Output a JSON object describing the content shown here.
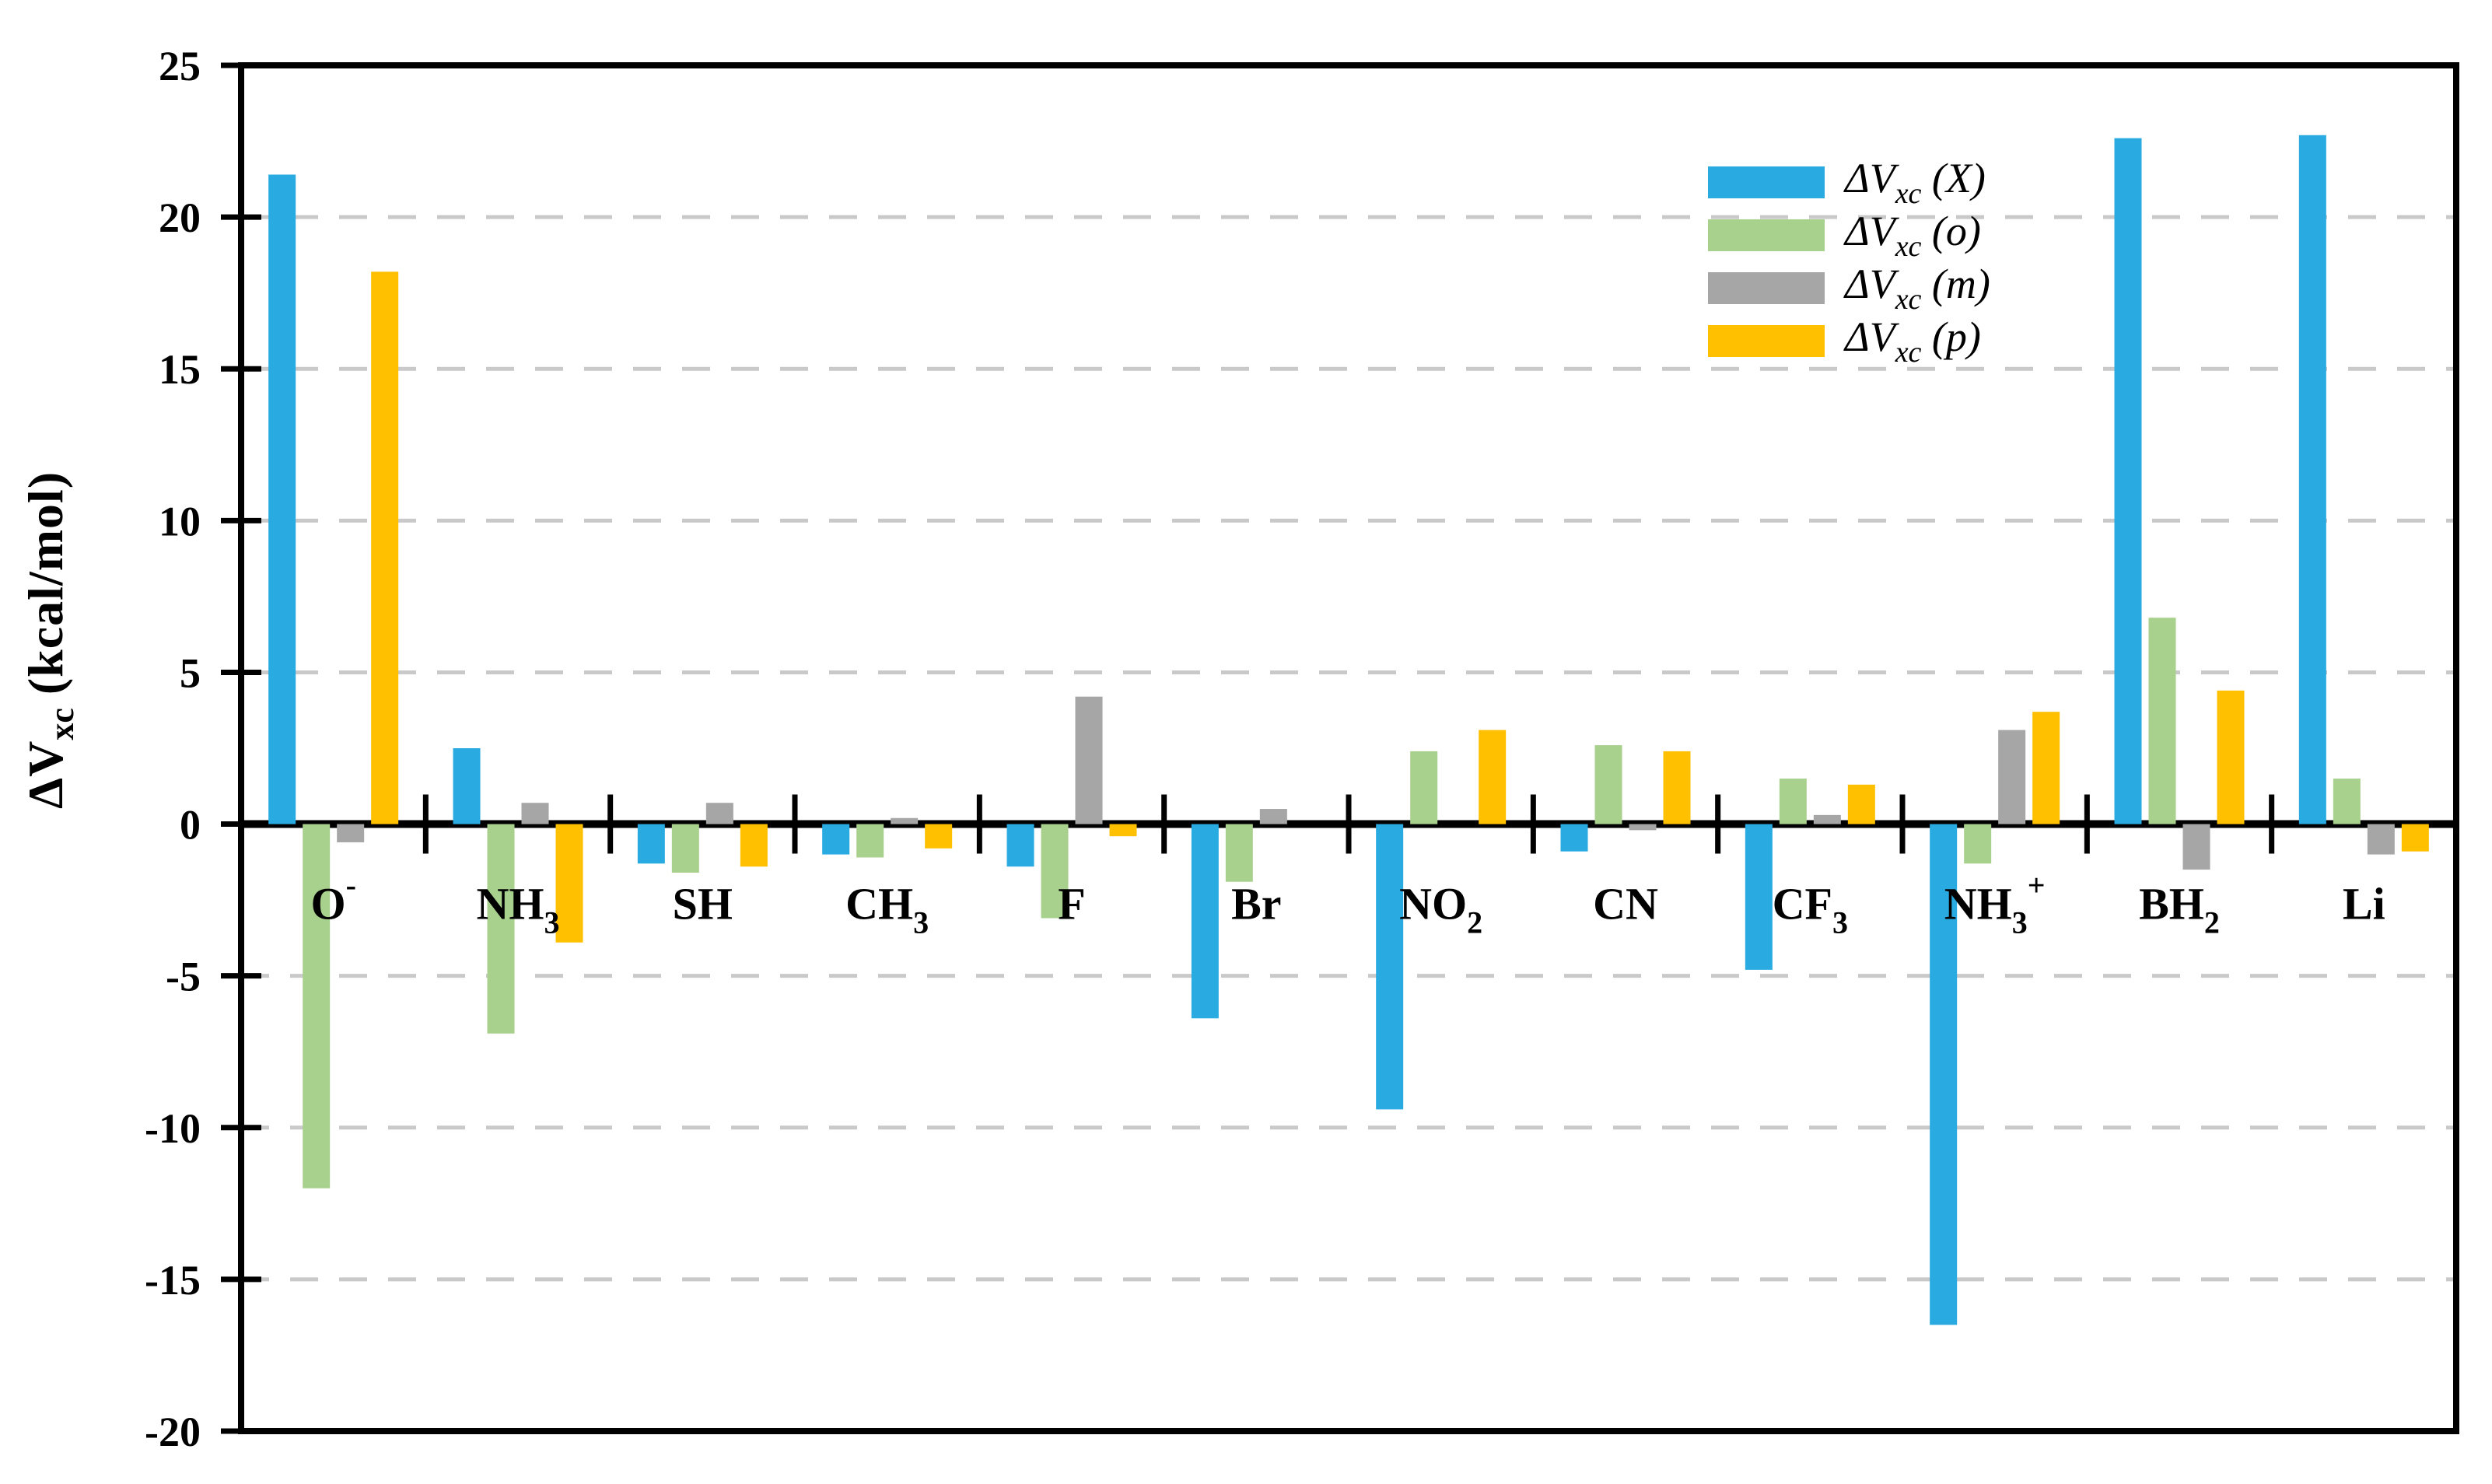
{
  "figure": {
    "background": "#FFFFFF",
    "axis_title": {
      "prefix": "ΔV",
      "sub": "xc",
      "rest": " (kcal/mol)"
    }
  },
  "legend": {
    "rows": [
      {
        "pre": "ΔV",
        "sub": "xc",
        "arg": " (X)"
      },
      {
        "pre": "ΔV",
        "sub": "xc",
        "arg": " (o)"
      },
      {
        "pre": "ΔV",
        "sub": "xc",
        "arg": " (m)"
      },
      {
        "pre": "ΔV",
        "sub": "xc",
        "arg": " (p)"
      }
    ]
  },
  "chart_data": {
    "type": "bar",
    "title": "",
    "xlabel": "",
    "ylabel": "ΔV_xc (kcal/mol)",
    "ylim": [
      -20,
      25
    ],
    "yticks": [
      25,
      20,
      15,
      10,
      5,
      0,
      -5,
      -10,
      -15,
      -20
    ],
    "grid": "horizontal dashed every 5, solid thick zero line, boxed plot area",
    "legend_position": "top-right inside",
    "categories": [
      "O^-",
      "NH_3",
      "SH",
      "CH_3",
      "F",
      "Br",
      "NO_2",
      "CN",
      "CF_3",
      "NH_3^+",
      "BH_2",
      "Li"
    ],
    "series": [
      {
        "name": "ΔV_xc (X)",
        "key": "X",
        "color": "#29ABE2",
        "values": [
          21.4,
          2.5,
          -1.3,
          -1.0,
          -1.4,
          -6.4,
          -9.4,
          -0.9,
          -4.8,
          -16.5,
          22.6,
          22.7
        ]
      },
      {
        "name": "ΔV_xc (o)",
        "key": "o",
        "color": "#A9D18E",
        "values": [
          -12.0,
          -6.9,
          -1.6,
          -1.1,
          -3.1,
          -1.9,
          2.4,
          2.6,
          1.5,
          -1.3,
          6.8,
          1.5
        ]
      },
      {
        "name": "ΔV_xc (m)",
        "key": "m",
        "color": "#A6A6A6",
        "values": [
          -0.6,
          0.7,
          0.7,
          0.2,
          4.2,
          0.5,
          0.0,
          -0.2,
          0.3,
          3.1,
          -1.5,
          -1.0
        ]
      },
      {
        "name": "ΔV_xc (p)",
        "key": "p",
        "color": "#FFC000",
        "values": [
          18.2,
          -3.9,
          -1.4,
          -0.8,
          -0.4,
          0.0,
          3.1,
          2.4,
          1.3,
          3.7,
          4.4,
          -0.9
        ]
      }
    ],
    "colors": {
      "axis": "#000000",
      "gridline": "#C9C9C9"
    }
  }
}
